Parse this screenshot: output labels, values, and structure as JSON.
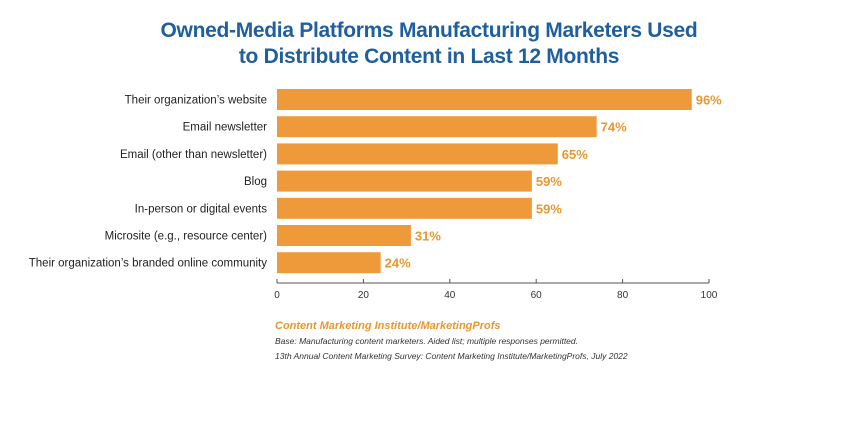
{
  "chart_data": {
    "type": "bar",
    "orientation": "horizontal",
    "title": [
      "Owned-Media Platforms Manufacturing Marketers Used",
      "to Distribute Content in Last 12 Months"
    ],
    "categories": [
      "Their organization’s website",
      "Email newsletter",
      "Email (other than newsletter)",
      "Blog",
      "In-person or digital events",
      "Microsite (e.g., resource center)",
      "Their organization’s branded online community"
    ],
    "values": [
      96,
      74,
      65,
      59,
      59,
      31,
      24
    ],
    "data_labels": [
      "96%",
      "74%",
      "65%",
      "59%",
      "59%",
      "31%",
      "24%"
    ],
    "xlim": [
      0,
      100
    ],
    "xticks": [
      "0",
      "20",
      "40",
      "60",
      "80",
      "100"
    ],
    "grid": false,
    "bar_color": "#ee9a3b",
    "label_color": "#e8972f"
  },
  "source": "Content Marketing Institute/MarketingProfs",
  "notes": [
    "Base: Manufacturing content marketers. Aided list; multiple responses permitted.",
    "13th Annual Content Marketing Survey: Content Marketing Institute/MarketingProfs, July 2022"
  ]
}
